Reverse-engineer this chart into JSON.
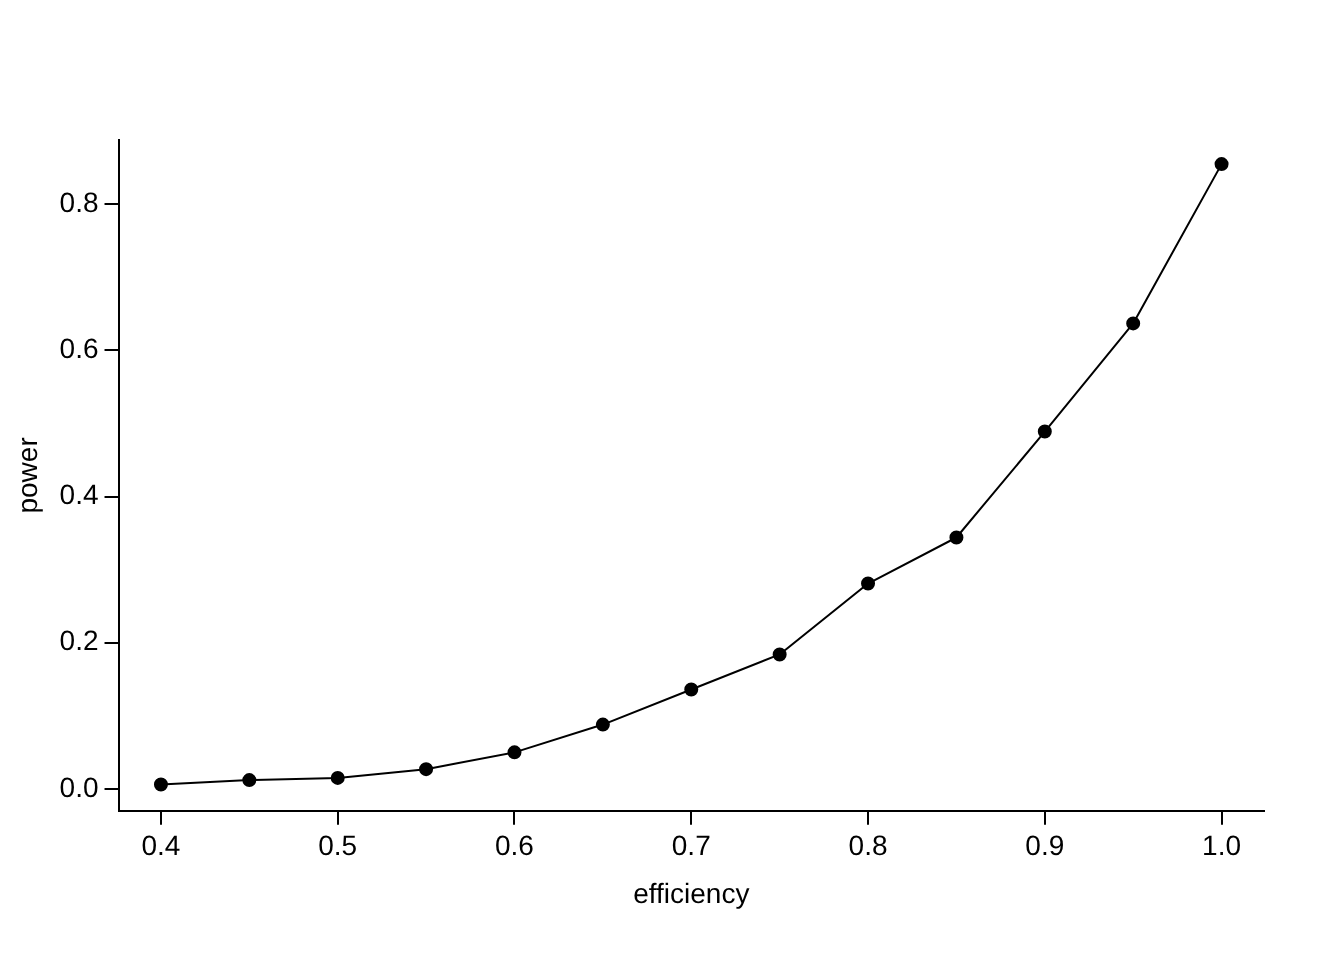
{
  "chart_data": {
    "type": "line",
    "xlabel": "efficiency",
    "ylabel": "power",
    "x": [
      0.4,
      0.45,
      0.5,
      0.55,
      0.6,
      0.65,
      0.7,
      0.75,
      0.8,
      0.85,
      0.9,
      0.95,
      1.0
    ],
    "series": [
      {
        "color": "#000000",
        "values": [
          0.006,
          0.012,
          0.015,
          0.027,
          0.05,
          0.088,
          0.136,
          0.184,
          0.281,
          0.344,
          0.489,
          0.637,
          0.855
        ]
      }
    ],
    "xlim": [
      0.376,
      1.024
    ],
    "ylim": [
      -0.03,
      0.888
    ],
    "xticks": [
      {
        "value": 0.4,
        "label": "0.4"
      },
      {
        "value": 0.5,
        "label": "0.5"
      },
      {
        "value": 0.6,
        "label": "0.6"
      },
      {
        "value": 0.7,
        "label": "0.7"
      },
      {
        "value": 0.8,
        "label": "0.8"
      },
      {
        "value": 0.9,
        "label": "0.9"
      },
      {
        "value": 1.0,
        "label": "1.0"
      }
    ],
    "yticks": [
      {
        "value": 0,
        "label": "0.0"
      },
      {
        "value": 0.2,
        "label": "0.2"
      },
      {
        "value": 0.4,
        "label": "0.4"
      },
      {
        "value": 0.6,
        "label": "0.6"
      },
      {
        "value": 0.8,
        "label": "0.8"
      }
    ],
    "grid": false,
    "legend": false,
    "marker": "circle",
    "line_style": "solid"
  }
}
